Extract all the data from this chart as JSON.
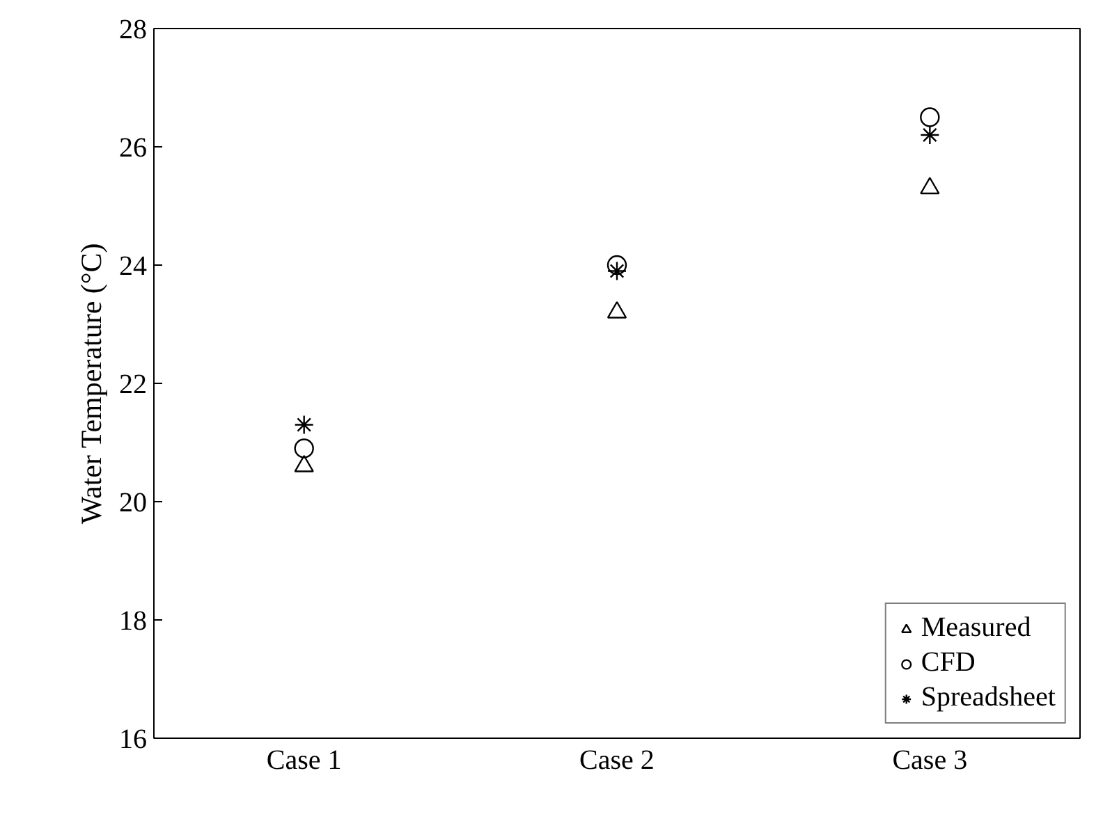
{
  "chart_data": {
    "type": "scatter",
    "ylabel": "Water Temperature (°C)",
    "categories": [
      "Case 1",
      "Case 2",
      "Case 3"
    ],
    "ylim": [
      16,
      28
    ],
    "yticks": [
      16,
      18,
      20,
      22,
      24,
      26,
      28
    ],
    "grid": false,
    "legend": "bottom right",
    "series": [
      {
        "name": "Measured",
        "color": "#000000",
        "marker": "triangle",
        "values": [
          20.6,
          23.2,
          25.3
        ]
      },
      {
        "name": "CFD",
        "color": "#000000",
        "marker": "circle",
        "values": [
          20.9,
          24.0,
          26.5
        ]
      },
      {
        "name": "Spreadsheet",
        "color": "#000000",
        "marker": "cross",
        "values": [
          21.3,
          23.9,
          26.2
        ]
      }
    ]
  }
}
